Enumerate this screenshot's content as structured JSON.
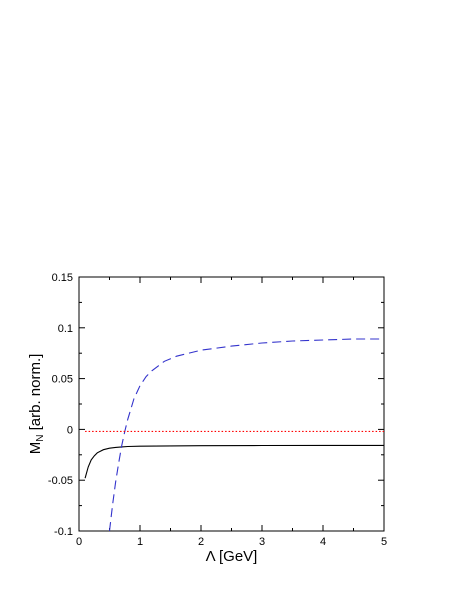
{
  "chart_data": {
    "type": "line",
    "title": "",
    "xlabel": "Λ [GeV]",
    "ylabel_main": "M",
    "ylabel_sub": "N",
    "ylabel_rest": " [arb. norm.]",
    "xlim": [
      0,
      5
    ],
    "ylim": [
      -0.1,
      0.15
    ],
    "xticks": [
      0,
      1,
      2,
      3,
      4,
      5
    ],
    "xtick_labels": [
      "0",
      "1",
      "2",
      "3",
      "4",
      "5"
    ],
    "yticks": [
      -0.1,
      -0.05,
      0,
      0.05,
      0.1,
      0.15
    ],
    "ytick_labels": [
      "-0.1",
      "-0.05",
      "0",
      "0.05",
      "0.1",
      "0.15"
    ],
    "grid": false,
    "series": [
      {
        "style": "solid",
        "color": "#000000",
        "x": [
          0.1,
          0.15,
          0.2,
          0.25,
          0.3,
          0.4,
          0.5,
          0.6,
          0.7,
          0.8,
          1.0,
          1.5,
          2.0,
          3.0,
          4.0,
          5.0
        ],
        "y": [
          -0.048,
          -0.037,
          -0.03,
          -0.026,
          -0.023,
          -0.02,
          -0.0185,
          -0.0177,
          -0.0172,
          -0.0168,
          -0.0165,
          -0.0162,
          -0.016,
          -0.0158,
          -0.0157,
          -0.0157
        ]
      },
      {
        "style": "dashed",
        "color": "#3333cc",
        "x": [
          0.5,
          0.55,
          0.6,
          0.65,
          0.7,
          0.75,
          0.8,
          0.9,
          1.0,
          1.1,
          1.2,
          1.4,
          1.6,
          1.8,
          2.0,
          2.5,
          3.0,
          3.5,
          4.0,
          4.5,
          5.0
        ],
        "y": [
          -0.1,
          -0.074,
          -0.052,
          -0.033,
          -0.016,
          -0.002,
          0.01,
          0.03,
          0.043,
          0.052,
          0.058,
          0.067,
          0.072,
          0.075,
          0.078,
          0.082,
          0.085,
          0.087,
          0.088,
          0.089,
          0.089
        ]
      },
      {
        "style": "dotted",
        "color": "#ff0000",
        "x": [
          0.1,
          5.0
        ],
        "y": [
          -0.002,
          -0.002
        ]
      }
    ]
  }
}
